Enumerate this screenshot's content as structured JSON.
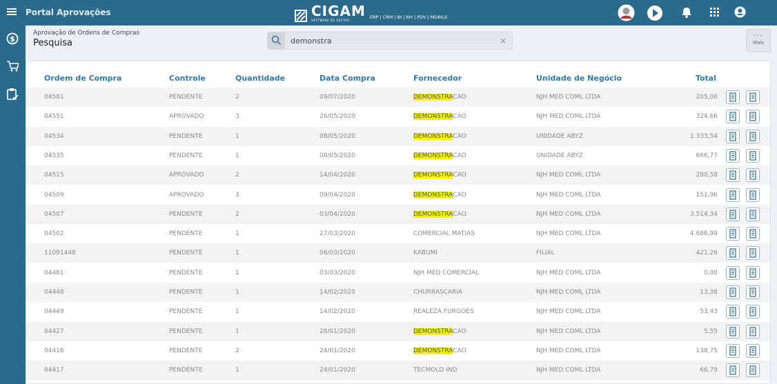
{
  "header": {
    "app_title": "Portal Aprovações",
    "logo": "CIGAM",
    "logo_subtitle": "SOFTWARE DE GESTÃO",
    "modules": "ERP | CRM | BI | RH | PDV | MOBILE"
  },
  "page": {
    "breadcrumb": "Aprovação de Ordens de Compras",
    "title": "Pesquisa",
    "search": "demonstra",
    "more": "Mais"
  },
  "table": {
    "columns": [
      "Ordem de Compra",
      "Controle",
      "Quantidade",
      "Data Compra",
      "Fornecedor",
      "Unidade de Negócio",
      "Total"
    ],
    "rows": [
      [
        "04581",
        "PENDENTE",
        "2",
        "09/07/2020",
        "DEMONSTRACAO",
        "NJH MED COML LTDA",
        "205,00"
      ],
      [
        "04551",
        "APROVADO",
        "3",
        "26/05/2020",
        "DEMONSTRACAO",
        "NJH MED COML LTDA",
        "324,66"
      ],
      [
        "04534",
        "PENDENTE",
        "1",
        "08/05/2020",
        "DEMONSTRACAO",
        "UNIDADE ABYZ",
        "1.333,54"
      ],
      [
        "04535",
        "PENDENTE",
        "1",
        "08/05/2020",
        "DEMONSTRACAO",
        "UNIDADE ABYZ",
        "666,77"
      ],
      [
        "04515",
        "APROVADO",
        "2",
        "14/04/2020",
        "DEMONSTRACAO",
        "NJH MED COML LTDA",
        "280,58"
      ],
      [
        "04509",
        "APROVADO",
        "3",
        "09/04/2020",
        "DEMONSTRACAO",
        "NJH MED COML LTDA",
        "151,96"
      ],
      [
        "04507",
        "PENDENTE",
        "2",
        "03/04/2020",
        "DEMONSTRACAO",
        "NJH MED COML LTDA",
        "3.514,34"
      ],
      [
        "04502",
        "PENDENTE",
        "1",
        "27/03/2020",
        "COMERCIAL MATIAS",
        "NJH MED COML LTDA",
        "4.686,99"
      ],
      [
        "11091448",
        "PENDENTE",
        "1",
        "06/03/2020",
        "KABUMI",
        "FILIAL",
        "421,26"
      ],
      [
        "04461",
        "PENDENTE",
        "1",
        "03/03/2020",
        "NJH MED COMERCIAL",
        "NJH MED COML LTDA",
        "0,00"
      ],
      [
        "04448",
        "PENDENTE",
        "1",
        "14/02/2020",
        "CHURRASCARIA",
        "NJH MED COML LTDA",
        "13,36"
      ],
      [
        "04449",
        "PENDENTE",
        "1",
        "14/02/2020",
        "REALEZA FURGOES",
        "NJH MED COML LTDA",
        "53,43"
      ],
      [
        "04427",
        "PENDENTE",
        "1",
        "28/01/2020",
        "DEMONSTRACAO",
        "NJH MED COML LTDA",
        "5,55"
      ],
      [
        "04416",
        "PENDENTE",
        "2",
        "24/01/2020",
        "DEMONSTRACAO",
        "NJH MED COML LTDA",
        "138,75"
      ],
      [
        "04417",
        "PENDENTE",
        "1",
        "24/01/2020",
        "TECMOLD IND",
        "NJH MED COML LTDA",
        "66,79"
      ]
    ]
  }
}
